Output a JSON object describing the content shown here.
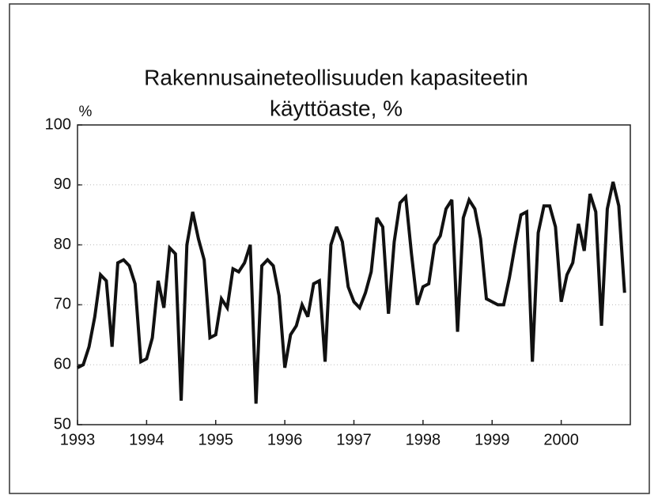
{
  "chart_data": {
    "type": "line",
    "title": [
      "Rakennusaineteollisuuden kapasiteetin",
      "käyttöaste, %"
    ],
    "ylabel": "%",
    "xlim": [
      1993,
      2001
    ],
    "xticks": [
      1993,
      1994,
      1995,
      1996,
      1997,
      1998,
      1999,
      2000
    ],
    "ylim": [
      50,
      100
    ],
    "yticks": [
      50,
      60,
      70,
      80,
      90,
      100
    ],
    "grid": true,
    "x": [
      1993,
      1993.083,
      1993.167,
      1993.25,
      1993.333,
      1993.417,
      1993.5,
      1993.583,
      1993.667,
      1993.75,
      1993.833,
      1993.917,
      1994,
      1994.083,
      1994.167,
      1994.25,
      1994.333,
      1994.417,
      1994.5,
      1994.583,
      1994.667,
      1994.75,
      1994.833,
      1994.917,
      1995,
      1995.083,
      1995.167,
      1995.25,
      1995.333,
      1995.417,
      1995.5,
      1995.583,
      1995.667,
      1995.75,
      1995.833,
      1995.917,
      1996,
      1996.083,
      1996.167,
      1996.25,
      1996.333,
      1996.417,
      1996.5,
      1996.583,
      1996.667,
      1996.75,
      1996.833,
      1996.917,
      1997,
      1997.083,
      1997.167,
      1997.25,
      1997.333,
      1997.417,
      1997.5,
      1997.583,
      1997.667,
      1997.75,
      1997.833,
      1997.917,
      1998,
      1998.083,
      1998.167,
      1998.25,
      1998.333,
      1998.417,
      1998.5,
      1998.583,
      1998.667,
      1998.75,
      1998.833,
      1998.917,
      1999,
      1999.083,
      1999.167,
      1999.25,
      1999.333,
      1999.417,
      1999.5,
      1999.583,
      1999.667,
      1999.75,
      1999.833,
      1999.917,
      2000,
      2000.083,
      2000.167,
      2000.25,
      2000.333,
      2000.417,
      2000.5,
      2000.583,
      2000.667,
      2000.75,
      2000.833,
      2000.917
    ],
    "series": [
      {
        "color": "#111111",
        "values": [
          59.5,
          60,
          63,
          68,
          75,
          74,
          63,
          77,
          77.5,
          76.5,
          73.5,
          60.5,
          61,
          64.5,
          74,
          69.5,
          79.5,
          78.5,
          54,
          80,
          85.5,
          81,
          77.5,
          64.5,
          65,
          71,
          69.5,
          76,
          75.5,
          77,
          80,
          53.5,
          76.5,
          77.5,
          76.5,
          71.5,
          59.5,
          65,
          66.5,
          70,
          68,
          73.5,
          74,
          60.5,
          80,
          83,
          80.5,
          73,
          70.5,
          69.5,
          72,
          75.5,
          84.5,
          83,
          68.5,
          80.5,
          87,
          88,
          78.5,
          70,
          73,
          73.5,
          80,
          81.5,
          86,
          87.5,
          65.5,
          84.5,
          87.5,
          86,
          81,
          71,
          70.5,
          70,
          70,
          74.5,
          80,
          85,
          85.5,
          60.5,
          82,
          86.5,
          86.5,
          83,
          70.5,
          75,
          77,
          83.5,
          79,
          88.5,
          85.5,
          66.5,
          86,
          90.5,
          86.5,
          72
        ]
      }
    ]
  }
}
